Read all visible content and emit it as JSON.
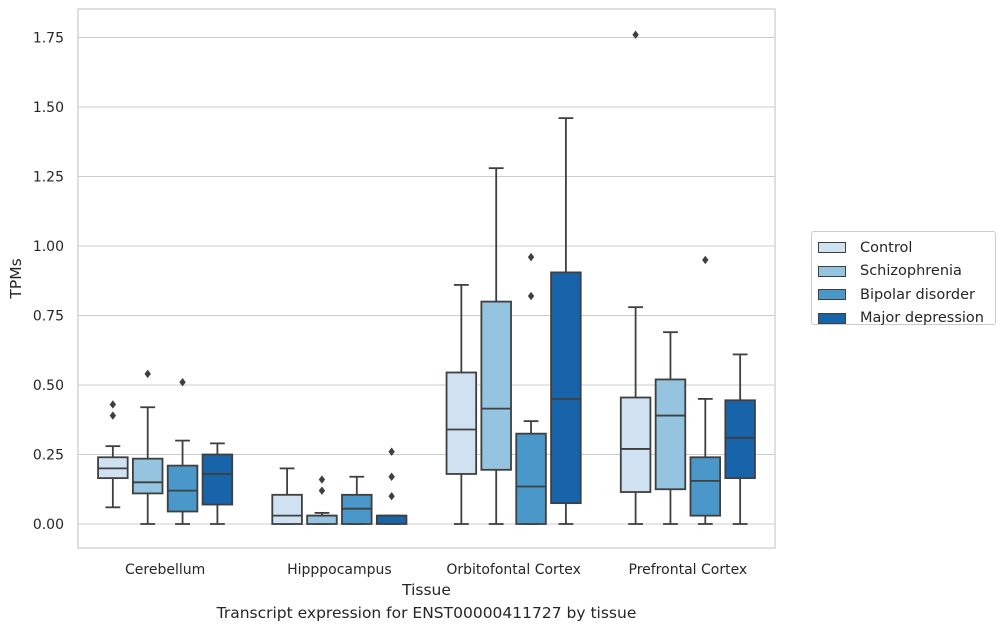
{
  "chart_data": {
    "type": "box",
    "title": "",
    "xlabel": "Tissue",
    "ylabel": "TPMs",
    "caption": "Transcript expression for ENST00000411727 by tissue",
    "ylim": [
      -0.085,
      1.85
    ],
    "yticks": [
      "0.00",
      "0.25",
      "0.50",
      "0.75",
      "1.00",
      "1.25",
      "1.50",
      "1.75"
    ],
    "ytick_values": [
      0,
      0.25,
      0.5,
      0.75,
      1.0,
      1.25,
      1.5,
      1.75
    ],
    "grid": "horizontal",
    "legend_position": "right",
    "categories": [
      "Cerebellum",
      "Hipppocampus",
      "Orbitofontal Cortex",
      "Prefrontal Cortex"
    ],
    "series": [
      {
        "name": "Control",
        "color": "#d0e1f2",
        "boxes": [
          {
            "whislo": 0.06,
            "q1": 0.165,
            "med": 0.2,
            "q3": 0.24,
            "whishi": 0.28,
            "fliers": [
              0.39,
              0.43
            ]
          },
          {
            "whislo": 0.0,
            "q1": 0.0,
            "med": 0.03,
            "q3": 0.105,
            "whishi": 0.2,
            "fliers": []
          },
          {
            "whislo": 0.0,
            "q1": 0.18,
            "med": 0.34,
            "q3": 0.545,
            "whishi": 0.86,
            "fliers": []
          },
          {
            "whislo": 0.0,
            "q1": 0.115,
            "med": 0.27,
            "q3": 0.455,
            "whishi": 0.78,
            "fliers": [
              1.76
            ]
          }
        ]
      },
      {
        "name": "Schizophrenia",
        "color": "#94c4df",
        "boxes": [
          {
            "whislo": 0.0,
            "q1": 0.11,
            "med": 0.15,
            "q3": 0.235,
            "whishi": 0.42,
            "fliers": [
              0.54
            ]
          },
          {
            "whislo": 0.0,
            "q1": 0.0,
            "med": 0.03,
            "q3": 0.03,
            "whishi": 0.04,
            "fliers": [
              0.12,
              0.16
            ]
          },
          {
            "whislo": 0.0,
            "q1": 0.195,
            "med": 0.415,
            "q3": 0.8,
            "whishi": 1.28,
            "fliers": []
          },
          {
            "whislo": 0.0,
            "q1": 0.125,
            "med": 0.39,
            "q3": 0.52,
            "whishi": 0.69,
            "fliers": []
          }
        ]
      },
      {
        "name": "Bipolar disorder",
        "color": "#4a98c9",
        "boxes": [
          {
            "whislo": 0.0,
            "q1": 0.045,
            "med": 0.12,
            "q3": 0.21,
            "whishi": 0.3,
            "fliers": [
              0.51
            ]
          },
          {
            "whislo": 0.0,
            "q1": 0.0,
            "med": 0.055,
            "q3": 0.105,
            "whishi": 0.17,
            "fliers": []
          },
          {
            "whislo": 0.0,
            "q1": 0.0,
            "med": 0.135,
            "q3": 0.325,
            "whishi": 0.37,
            "fliers": [
              0.82,
              0.96
            ]
          },
          {
            "whislo": 0.0,
            "q1": 0.03,
            "med": 0.155,
            "q3": 0.24,
            "whishi": 0.45,
            "fliers": [
              0.95
            ]
          }
        ]
      },
      {
        "name": "Major depression",
        "color": "#1764ab",
        "boxes": [
          {
            "whislo": 0.0,
            "q1": 0.07,
            "med": 0.18,
            "q3": 0.25,
            "whishi": 0.29,
            "fliers": []
          },
          {
            "whislo": 0.0,
            "q1": 0.0,
            "med": 0.03,
            "q3": 0.03,
            "whishi": 0.03,
            "fliers": [
              0.1,
              0.17,
              0.26
            ]
          },
          {
            "whislo": 0.0,
            "q1": 0.075,
            "med": 0.45,
            "q3": 0.905,
            "whishi": 1.46,
            "fliers": []
          },
          {
            "whislo": 0.0,
            "q1": 0.165,
            "med": 0.31,
            "q3": 0.445,
            "whishi": 0.61,
            "fliers": []
          }
        ]
      }
    ]
  }
}
